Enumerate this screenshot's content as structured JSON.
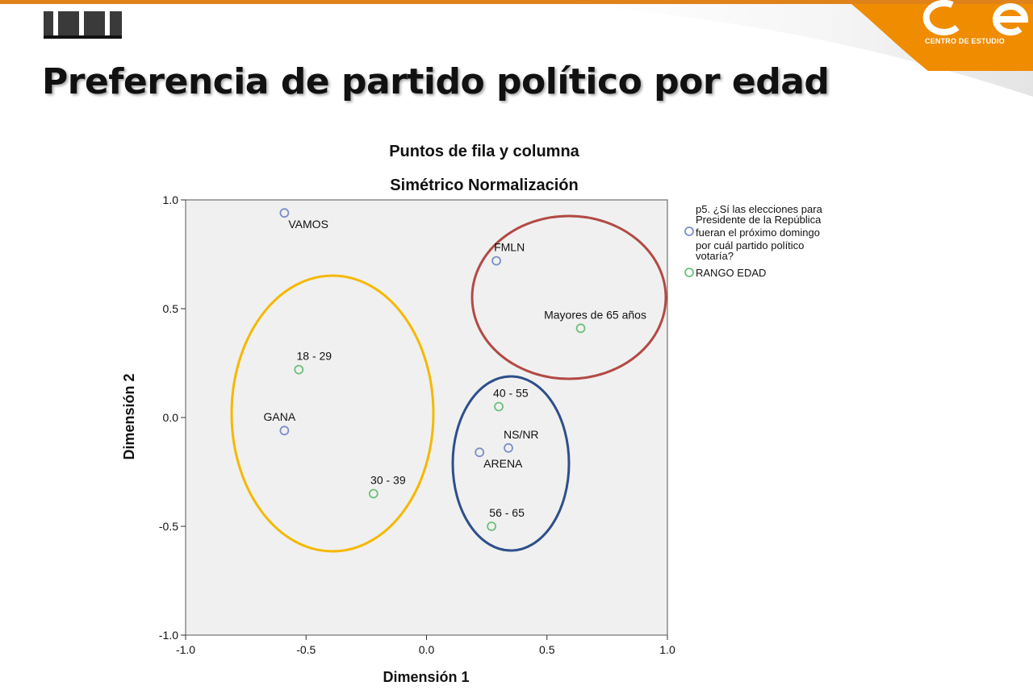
{
  "header": {
    "title": "Preferencia de partido político por edad",
    "brand_text": "CENTRO DE ESTUDIO",
    "logo_letters": "CE"
  },
  "colors": {
    "brand_orange": "#F08C00",
    "row_points": "#7B8FC8",
    "column_points": "#6CC07A",
    "plot_background": "#F0F0F0",
    "ellipse_yellow": "#F5B800",
    "ellipse_red": "#B24A45",
    "ellipse_blue": "#2E4F8A"
  },
  "chart_data": {
    "type": "scatter",
    "title": "Puntos de fila y columna",
    "subtitle": "Simétrico Normalización",
    "xlabel": "Dimensión 1",
    "ylabel": "Dimensión 2",
    "xlim": [
      -1.0,
      1.0
    ],
    "ylim": [
      -1.0,
      1.0
    ],
    "xticks": [
      "-1.0",
      "-0.5",
      "0.0",
      "0.5",
      "1.0"
    ],
    "yticks": [
      "1.0",
      "0.5",
      "0.0",
      "-0.5",
      "-1.0"
    ],
    "grid": false,
    "legend_position": "right",
    "series": [
      {
        "name": "p5. ¿Sí las elecciones para Presidente de la República fueran el próximo domingo por cuál partido político votaría?",
        "legend_lines": [
          "p5. ¿Sí las elecciones para",
          "Presidente de la República",
          "fueran el próximo domingo",
          "por cuál partido político",
          "votaría?"
        ],
        "color": "#7B8FC8",
        "points": [
          {
            "label": "VAMOS",
            "x": -0.59,
            "y": 0.94
          },
          {
            "label": "FMLN",
            "x": 0.29,
            "y": 0.72
          },
          {
            "label": "GANA",
            "x": -0.59,
            "y": -0.06
          },
          {
            "label": "NS/NR",
            "x": 0.34,
            "y": -0.14
          },
          {
            "label": "ARENA",
            "x": 0.22,
            "y": -0.16
          }
        ]
      },
      {
        "name": "RANGO EDAD",
        "legend_lines": [
          "RANGO EDAD"
        ],
        "color": "#6CC07A",
        "points": [
          {
            "label": "Mayores de 65 años",
            "x": 0.64,
            "y": 0.41
          },
          {
            "label": "18 - 29",
            "x": -0.53,
            "y": 0.22
          },
          {
            "label": "40 - 55",
            "x": 0.3,
            "y": 0.05
          },
          {
            "label": "30 - 39",
            "x": -0.22,
            "y": -0.35
          },
          {
            "label": "56 - 65",
            "x": 0.27,
            "y": -0.5
          }
        ]
      }
    ]
  }
}
